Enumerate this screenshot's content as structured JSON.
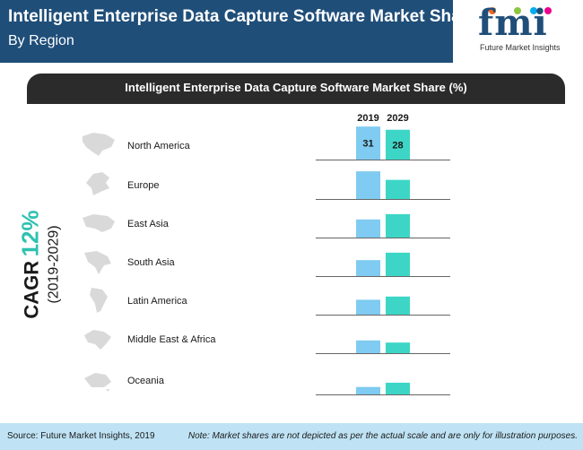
{
  "header": {
    "title": "Intelligent Enterprise Data Capture Software Market Share (%)",
    "subtitle": "By Region"
  },
  "logo": {
    "text": "fmi",
    "tagline": "Future Market Insights"
  },
  "cagr": {
    "label": "CAGR",
    "value": "12%",
    "period": "(2019-2029)"
  },
  "footer": {
    "source": "Source: Future Market Insights, 2019",
    "note": "Note: Market shares are not depicted as per the actual scale and are only for illustration purposes."
  },
  "colors": {
    "header_bg": "#1f4e79",
    "series_2019": "#7fcbf1",
    "series_2029": "#3dd6c6",
    "map_grey": "#d9d9d9"
  },
  "chart_data": {
    "type": "bar",
    "title": "Intelligent Enterprise Data Capture Software Market Share (%)",
    "categories": [
      "North America",
      "Europe",
      "East Asia",
      "South Asia",
      "Latin America",
      "Middle East & Africa",
      "Oceania"
    ],
    "series": [
      {
        "name": "2019",
        "values": [
          31,
          26,
          17,
          15,
          14,
          12,
          7
        ],
        "labels": [
          "31",
          "",
          "",
          "",
          "",
          "",
          ""
        ]
      },
      {
        "name": "2029",
        "values": [
          28,
          18,
          22,
          22,
          17,
          10,
          11
        ],
        "labels": [
          "28",
          "",
          "",
          "",
          "",
          "",
          ""
        ]
      }
    ],
    "ylim": [
      0,
      32
    ],
    "icons": [
      "north-america-map-icon",
      "europe-map-icon",
      "east-asia-map-icon",
      "south-asia-map-icon",
      "latin-america-map-icon",
      "middle-east-africa-map-icon",
      "oceania-map-icon"
    ]
  }
}
